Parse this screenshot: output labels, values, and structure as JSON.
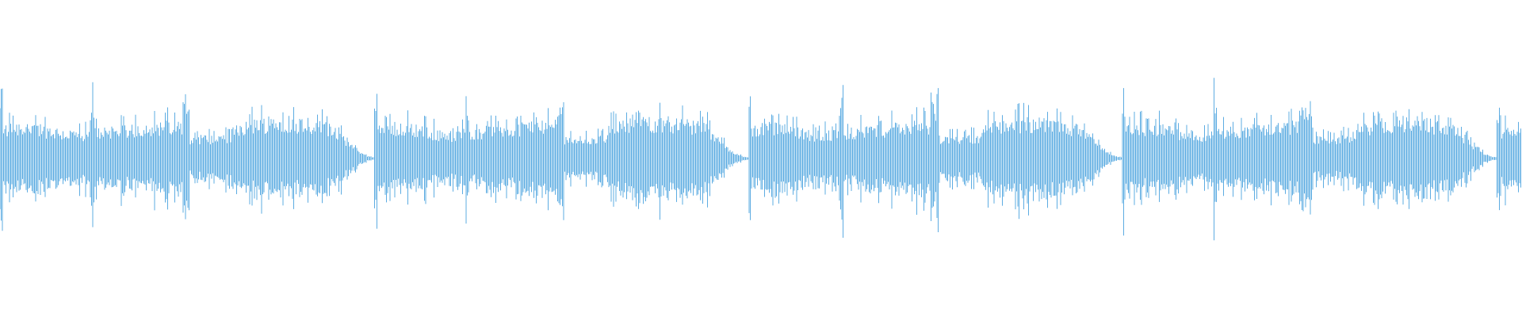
{
  "waveform": {
    "color": "#5dace2",
    "background": "#ffffff",
    "segments_visible": 5
  }
}
